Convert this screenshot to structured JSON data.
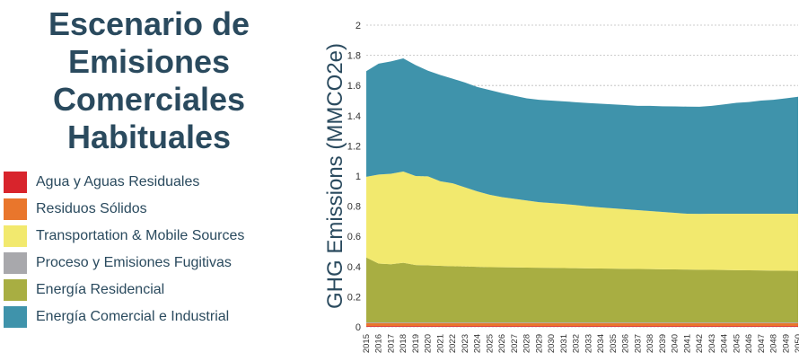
{
  "chart_data": {
    "type": "area",
    "stacked": true,
    "title_lines": [
      "Escenario de",
      "Emisiones",
      "Comerciales",
      "Habituales"
    ],
    "xlabel": "",
    "ylabel": "GHG Emissions (MMCO2e)",
    "ylim": [
      0,
      2
    ],
    "yticks": [
      "0",
      "0.2",
      "0.4",
      "0.6",
      "0.8",
      "1",
      "1.2",
      "1.4",
      "1.6",
      "1.8",
      "2"
    ],
    "grid": true,
    "legend_position": "left",
    "x": [
      "2015",
      "2016",
      "2017",
      "2018",
      "2019",
      "2020",
      "2021",
      "2022",
      "2023",
      "2024",
      "2025",
      "2026",
      "2027",
      "2028",
      "2029",
      "2030",
      "2031",
      "2032",
      "2033",
      "2034",
      "2035",
      "2036",
      "2037",
      "2038",
      "2039",
      "2040",
      "2041",
      "2042",
      "2043",
      "2044",
      "2045",
      "2046",
      "2047",
      "2048",
      "2049",
      "2050"
    ],
    "series": [
      {
        "name": "Agua y Aguas Residuales",
        "color": "#d8242c",
        "values": [
          0.005,
          0.005,
          0.005,
          0.005,
          0.005,
          0.005,
          0.005,
          0.005,
          0.005,
          0.005,
          0.005,
          0.005,
          0.005,
          0.005,
          0.005,
          0.005,
          0.005,
          0.005,
          0.005,
          0.005,
          0.005,
          0.005,
          0.005,
          0.005,
          0.005,
          0.005,
          0.005,
          0.005,
          0.005,
          0.005,
          0.005,
          0.005,
          0.005,
          0.005,
          0.005,
          0.005
        ]
      },
      {
        "name": "Residuos Sólidos",
        "color": "#e9762c",
        "values": [
          0.02,
          0.02,
          0.02,
          0.02,
          0.02,
          0.02,
          0.02,
          0.02,
          0.02,
          0.02,
          0.02,
          0.02,
          0.02,
          0.02,
          0.02,
          0.02,
          0.02,
          0.02,
          0.02,
          0.02,
          0.02,
          0.02,
          0.02,
          0.02,
          0.02,
          0.02,
          0.02,
          0.02,
          0.02,
          0.02,
          0.02,
          0.02,
          0.02,
          0.02,
          0.02,
          0.02
        ]
      },
      {
        "name": "Proceso y Emisiones Fugitivas",
        "color": "#a8a8ac",
        "values": [
          0.005,
          0.005,
          0.005,
          0.005,
          0.005,
          0.005,
          0.005,
          0.005,
          0.005,
          0.005,
          0.005,
          0.005,
          0.005,
          0.005,
          0.005,
          0.005,
          0.005,
          0.005,
          0.005,
          0.005,
          0.005,
          0.005,
          0.005,
          0.005,
          0.005,
          0.005,
          0.005,
          0.005,
          0.005,
          0.005,
          0.005,
          0.005,
          0.005,
          0.005,
          0.005,
          0.005
        ]
      },
      {
        "name": "Energía Residencial",
        "color": "#a8ae42",
        "values": [
          0.43,
          0.39,
          0.385,
          0.395,
          0.38,
          0.378,
          0.375,
          0.372,
          0.37,
          0.368,
          0.366,
          0.365,
          0.364,
          0.363,
          0.362,
          0.361,
          0.36,
          0.359,
          0.358,
          0.357,
          0.356,
          0.355,
          0.354,
          0.353,
          0.352,
          0.351,
          0.35,
          0.349,
          0.348,
          0.347,
          0.346,
          0.345,
          0.344,
          0.343,
          0.342,
          0.341
        ]
      },
      {
        "name": "Transportation & Mobile Sources",
        "color": "#f2e96e",
        "values": [
          0.535,
          0.59,
          0.6,
          0.605,
          0.59,
          0.59,
          0.56,
          0.55,
          0.525,
          0.5,
          0.48,
          0.465,
          0.455,
          0.445,
          0.435,
          0.43,
          0.425,
          0.418,
          0.41,
          0.405,
          0.4,
          0.395,
          0.39,
          0.385,
          0.38,
          0.375,
          0.37,
          0.37,
          0.372,
          0.373,
          0.374,
          0.375,
          0.376,
          0.377,
          0.378,
          0.379
        ]
      },
      {
        "name": "Energía Comercial e Industrial",
        "color": "#3f93ab",
        "values": [
          0.7,
          0.735,
          0.745,
          0.75,
          0.735,
          0.7,
          0.705,
          0.693,
          0.695,
          0.692,
          0.694,
          0.69,
          0.683,
          0.677,
          0.678,
          0.679,
          0.68,
          0.682,
          0.686,
          0.687,
          0.689,
          0.69,
          0.691,
          0.697,
          0.7,
          0.705,
          0.71,
          0.71,
          0.715,
          0.725,
          0.735,
          0.74,
          0.75,
          0.755,
          0.765,
          0.775
        ]
      }
    ]
  },
  "legend": [
    {
      "label": "Agua y Aguas Residuales",
      "color": "#d8242c"
    },
    {
      "label": "Residuos Sólidos",
      "color": "#e9762c"
    },
    {
      "label": "Transportation & Mobile Sources",
      "color": "#f2e96e"
    },
    {
      "label": "Proceso y Emisiones Fugitivas",
      "color": "#a8a8ac"
    },
    {
      "label": "Energía Residencial",
      "color": "#a8ae42"
    },
    {
      "label": "Energía Comercial e Industrial",
      "color": "#3f93ab"
    }
  ]
}
